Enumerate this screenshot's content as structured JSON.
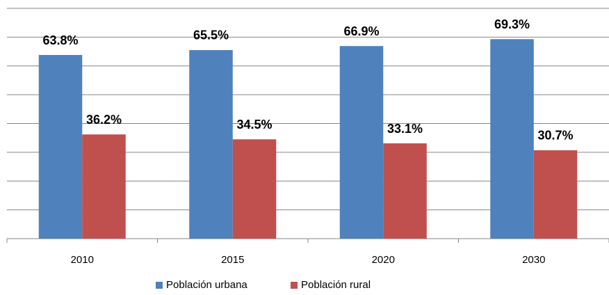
{
  "chart_data": {
    "type": "bar",
    "categories": [
      "2010",
      "2015",
      "2020",
      "2030"
    ],
    "series": [
      {
        "name": "Población urbana",
        "color": "#4f81bd",
        "values": [
          63.8,
          65.5,
          66.9,
          69.3
        ],
        "value_labels": [
          "63.8%",
          "65.5%",
          "66.9%",
          "69.3%"
        ]
      },
      {
        "name": "Población rural",
        "color": "#c0504d",
        "values": [
          36.2,
          34.5,
          33.1,
          30.7
        ],
        "value_labels": [
          "36.2%",
          "34.5%",
          "33.1%",
          "30.7%"
        ]
      }
    ],
    "ylim": [
      0,
      80
    ],
    "yticks": [
      0,
      10,
      20,
      30,
      40,
      50,
      60,
      70,
      80
    ],
    "grid": true,
    "legend": "bottom"
  }
}
